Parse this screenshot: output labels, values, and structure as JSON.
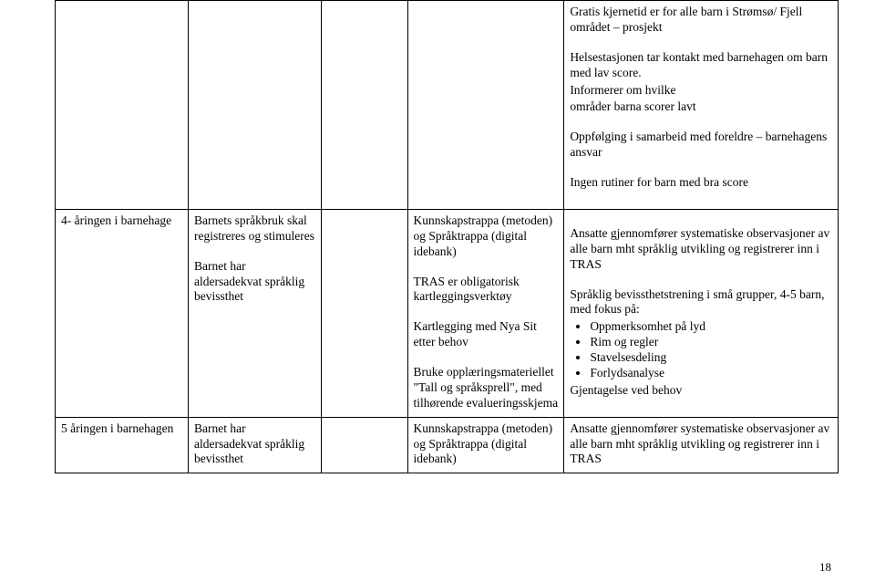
{
  "row1": {
    "c1": "",
    "c2": "",
    "c3": "",
    "c4": "",
    "c5_p1": "Gratis kjernetid er for alle barn i Strømsø/ Fjell området – prosjekt",
    "c5_p2": "Helsestasjonen tar kontakt med barnehagen om barn med lav score.",
    "c5_p3": "Informerer om hvilke",
    "c5_p4": "områder barna scorer lavt",
    "c5_p5": "Oppfølging i samarbeid med foreldre – barnehagens ansvar",
    "c5_p6": "Ingen rutiner for barn med bra score"
  },
  "row2": {
    "c1": "4- åringen i barnehage",
    "c2_p1": "Barnets språkbruk skal registreres og stimuleres",
    "c2_p2": "Barnet har aldersadekvat språklig bevissthet",
    "c3": "",
    "c4_p1": "Kunnskapstrappa (metoden) og Språktrappa (digital idebank)",
    "c4_p2": "TRAS er obligatorisk kartleggingsverktøy",
    "c4_p3": "Kartlegging med Nya Sit etter behov",
    "c4_p4": "Bruke opplæringsmateriellet \"Tall og språksprell\", med tilhørende evalueringsskjema",
    "c5_p1": "Ansatte gjennomfører systematiske observasjoner av alle barn mht språklig utvikling og registrerer inn i TRAS",
    "c5_p2": "Språklig bevissthetstrening i små grupper, 4-5 barn, med fokus på:",
    "c5_li1": "Oppmerksomhet på lyd",
    "c5_li2": "Rim og regler",
    "c5_li3": "Stavelsesdeling",
    "c5_li4": "Forlydsanalyse",
    "c5_p3": "Gjentagelse ved behov"
  },
  "row3": {
    "c1": "5 åringen i barnehagen",
    "c2": "Barnet har aldersadekvat språklig bevissthet",
    "c3": "",
    "c4": "Kunnskapstrappa (metoden) og Språktrappa (digital idebank)",
    "c5": "Ansatte gjennomfører systematiske observasjoner av alle barn mht språklig utvikling og registrerer inn i TRAS"
  },
  "pagenum": "18"
}
